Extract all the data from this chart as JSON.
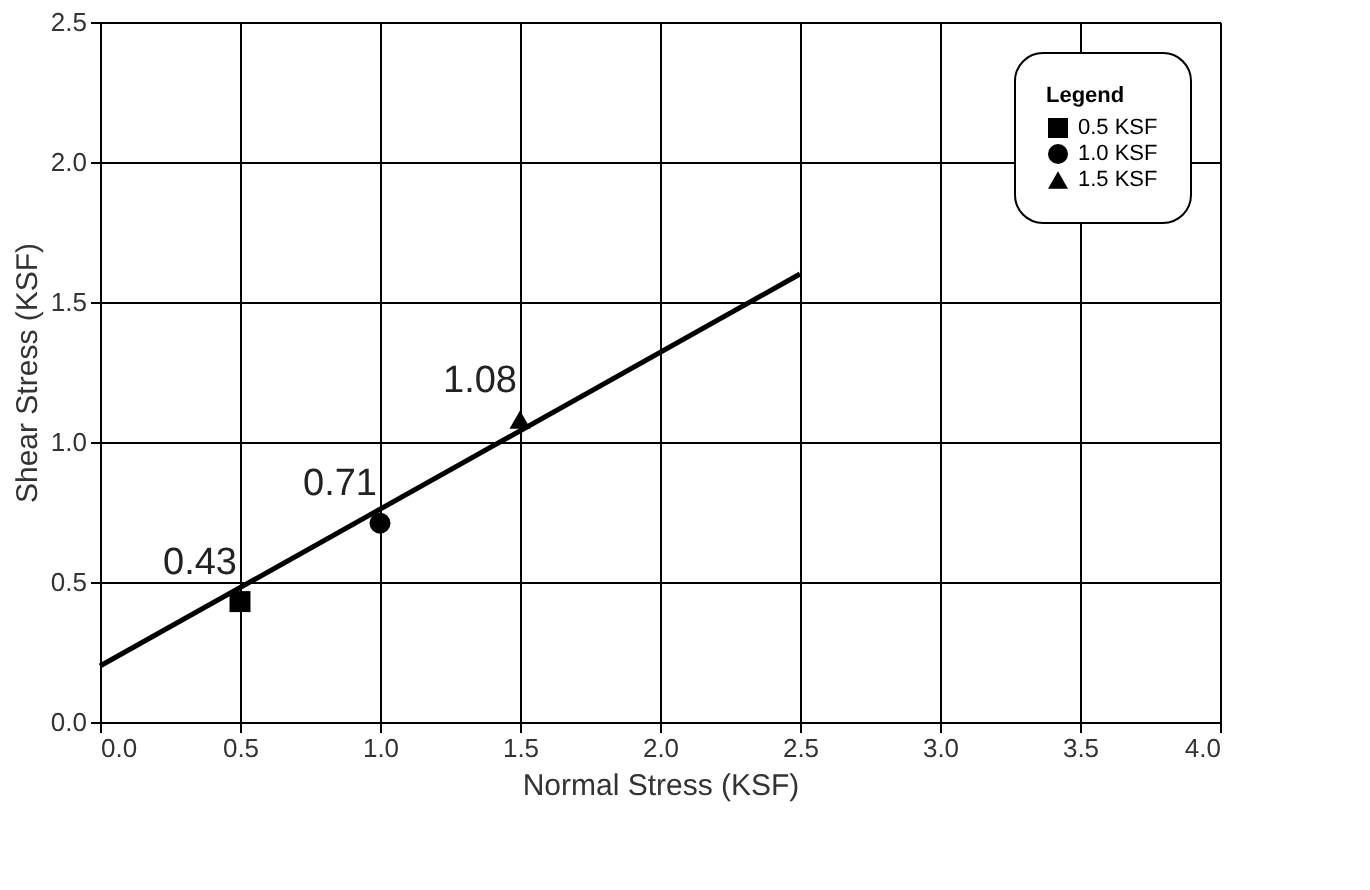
{
  "chart_data": {
    "type": "scatter",
    "xlabel": "Normal Stress (KSF)",
    "ylabel": "Shear Stress (KSF)",
    "legend_title": "Legend",
    "xlim": [
      0,
      4
    ],
    "xticks": [
      {
        "value": 0,
        "label": "0.0"
      },
      0.5,
      {
        "value": 1,
        "label": "1.0"
      },
      1.5,
      {
        "value": 2,
        "label": "2.0"
      },
      2.5,
      {
        "value": 3,
        "label": "3.0"
      },
      3.5,
      {
        "value": 4,
        "label": "4.0"
      }
    ],
    "ylim": [
      0,
      2.5
    ],
    "yticks": [
      {
        "value": 0,
        "label": "0.0"
      },
      0.5,
      {
        "value": 1,
        "label": "1.0"
      },
      1.5,
      {
        "value": 2,
        "label": "2.0"
      },
      2.5
    ],
    "grid": true,
    "legend": "top right",
    "series": [
      {
        "name": "0.5 KSF",
        "color": "#000000",
        "marker": "square",
        "x": [
          0.5
        ],
        "values": [
          0.43
        ],
        "value_labels": [
          "0.43"
        ]
      },
      {
        "name": "1.0 KSF",
        "color": "#000000",
        "marker": "circle",
        "x": [
          1.0
        ],
        "values": [
          0.71
        ],
        "value_labels": [
          "0.71"
        ]
      },
      {
        "name": "1.5 KSF",
        "color": "#000000",
        "marker": "triangle",
        "x": [
          1.5
        ],
        "values": [
          1.08
        ],
        "value_labels": [
          "1.08"
        ]
      },
      {
        "type": "line",
        "color": "#000000",
        "x": [
          0,
          2.5
        ],
        "values": [
          0.2,
          1.6
        ],
        "line_style": "solid"
      }
    ]
  }
}
